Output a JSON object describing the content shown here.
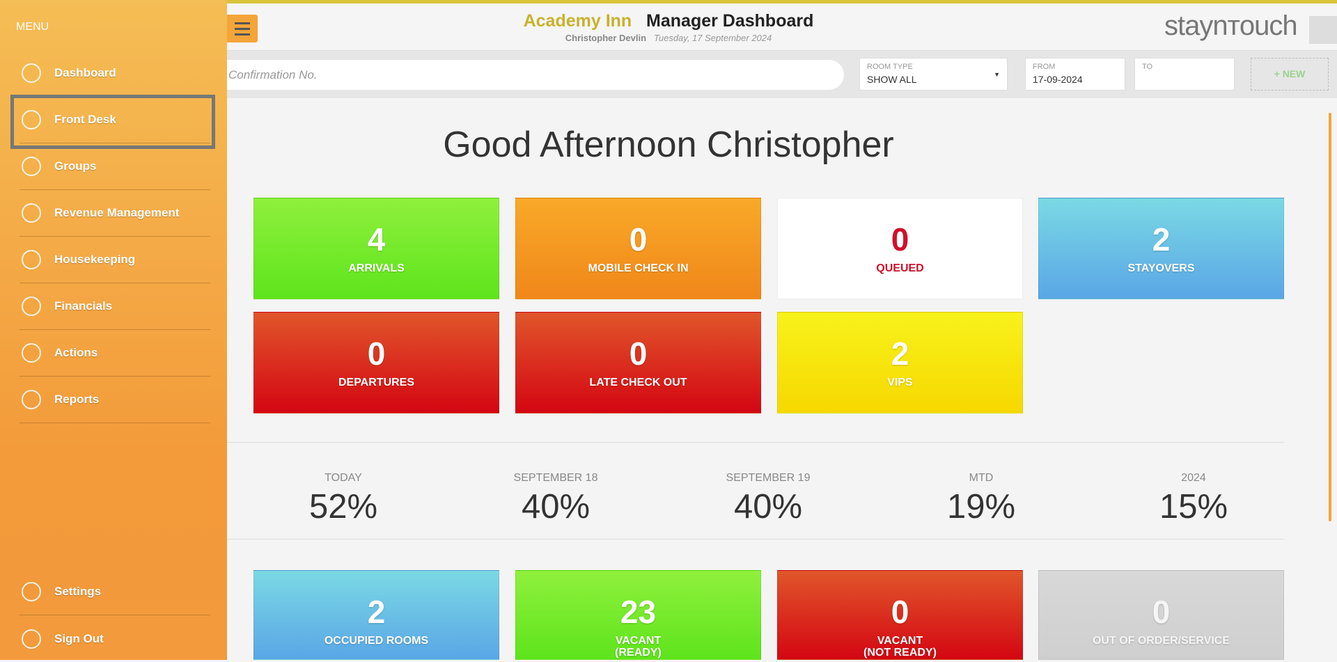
{
  "header": {
    "hotel": "Academy Inn",
    "title": "Manager Dashboard",
    "user": "Christopher Devlin",
    "date": "Tuesday, 17 September 2024",
    "logo": "staynтouch"
  },
  "menu": {
    "label": "MENU",
    "items": [
      "Dashboard",
      "Front Desk",
      "Groups",
      "Revenue Management",
      "Housekeeping",
      "Financials",
      "Actions",
      "Reports"
    ],
    "bottom_items": [
      "Settings",
      "Sign Out"
    ]
  },
  "search": {
    "placeholder": "Confirmation No."
  },
  "filters": {
    "room_type_label": "ROOM TYPE",
    "room_type_value": "SHOW ALL",
    "from_label": "FROM",
    "from_value": "17-09-2024",
    "to_label": "TO",
    "new_button": "+ NEW"
  },
  "greeting": "Good Afternoon Christopher",
  "tiles": [
    {
      "value": "4",
      "label": "ARRIVALS"
    },
    {
      "value": "0",
      "label": "MOBILE CHECK IN"
    },
    {
      "value": "0",
      "label": "QUEUED"
    },
    {
      "value": "2",
      "label": "STAYOVERS"
    },
    {
      "value": "0",
      "label": "DEPARTURES"
    },
    {
      "value": "0",
      "label": "LATE CHECK OUT"
    },
    {
      "value": "2",
      "label": "VIPS"
    }
  ],
  "stats": [
    {
      "label": "TODAY",
      "value": "52%"
    },
    {
      "label": "SEPTEMBER 18",
      "value": "40%"
    },
    {
      "label": "SEPTEMBER 19",
      "value": "40%"
    },
    {
      "label": "MTD",
      "value": "19%"
    },
    {
      "label": "2024",
      "value": "15%"
    }
  ],
  "room_tiles": [
    {
      "value": "2",
      "label": "OCCUPIED ROOMS"
    },
    {
      "value": "23",
      "label": "VACANT\n(READY)"
    },
    {
      "value": "0",
      "label": "VACANT\n(NOT READY)"
    },
    {
      "value": "0",
      "label": "OUT OF ORDER/SERVICE"
    }
  ]
}
